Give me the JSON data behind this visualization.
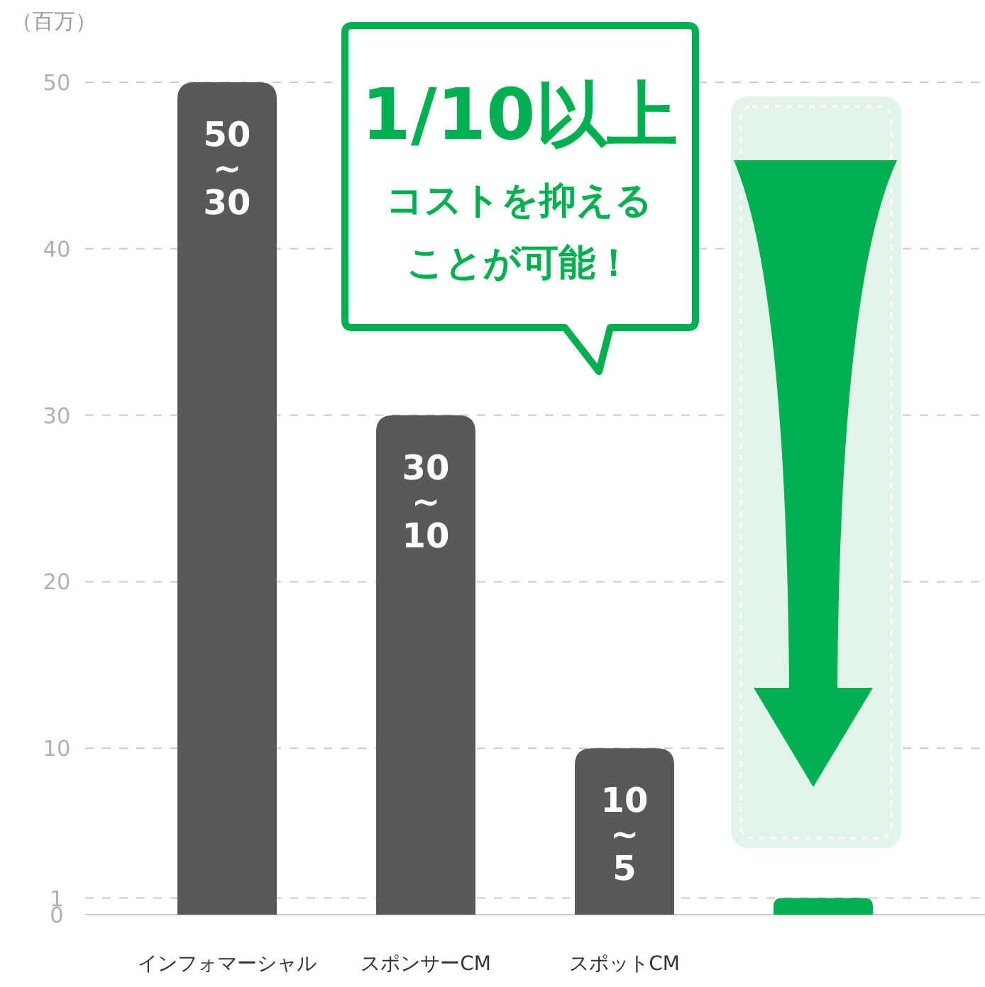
{
  "chart_data": {
    "type": "bar",
    "ylabel": "（百万）",
    "categories": [
      "インフォマーシャル",
      "スポンサーCM",
      "スポットCM",
      null
    ],
    "values": [
      50,
      30,
      10,
      1
    ],
    "colors": [
      "#595959",
      "#595959",
      "#595959",
      "#00b050"
    ],
    "value_labels": [
      "50~30",
      "30~10",
      "10~5",
      null
    ],
    "ylim": [
      0,
      50
    ],
    "yticks": [
      0,
      1,
      10,
      20,
      30,
      40,
      50
    ],
    "grid": "y",
    "annotations": [
      "1/10以上",
      "コストを抑えることが可能！"
    ]
  }
}
